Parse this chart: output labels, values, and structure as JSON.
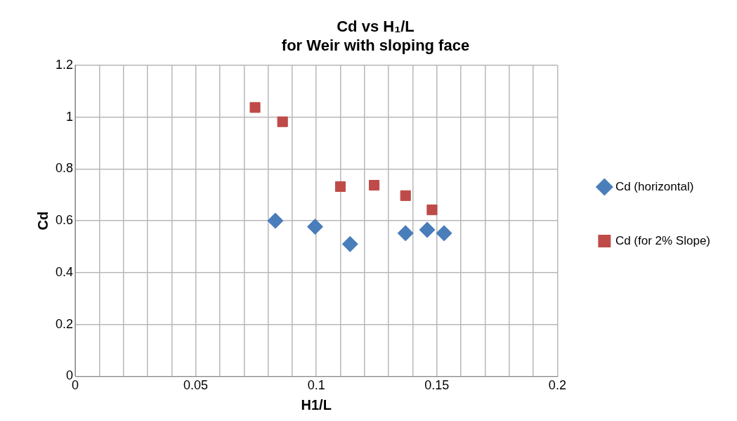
{
  "chart_data": {
    "type": "scatter",
    "title": [
      "Cd vs H₁/L",
      "for Weir with sloping face"
    ],
    "xlabel": "H1/L",
    "ylabel": "Cd",
    "xlim": [
      0,
      0.2
    ],
    "ylim": [
      0,
      1.2
    ],
    "xticks": [
      0,
      {
        "value": 0.01,
        "label": null
      },
      {
        "value": 0.02,
        "label": null
      },
      {
        "value": 0.03,
        "label": null
      },
      {
        "value": 0.04,
        "label": null
      },
      0.05,
      {
        "value": 0.06,
        "label": null
      },
      {
        "value": 0.07,
        "label": null
      },
      {
        "value": 0.08,
        "label": null
      },
      {
        "value": 0.09,
        "label": null
      },
      0.1,
      {
        "value": 0.11,
        "label": null
      },
      {
        "value": 0.12,
        "label": null
      },
      {
        "value": 0.13,
        "label": null
      },
      {
        "value": 0.14,
        "label": null
      },
      0.15,
      {
        "value": 0.16,
        "label": null
      },
      {
        "value": 0.17,
        "label": null
      },
      {
        "value": 0.18,
        "label": null
      },
      {
        "value": 0.19,
        "label": null
      },
      0.2
    ],
    "yticks": [
      0,
      0.2,
      0.4,
      0.6,
      0.8,
      1,
      1.2
    ],
    "grid": true,
    "legend": "right",
    "series": [
      {
        "name": "Cd (horizontal)",
        "color": "#4a7ebb",
        "marker": "diamond",
        "x": [
          0.083,
          0.0995,
          0.114,
          0.137,
          0.146,
          0.153
        ],
        "values": [
          0.6,
          0.577,
          0.51,
          0.552,
          0.565,
          0.552
        ]
      },
      {
        "name": "Cd (for 2% Slope)",
        "color": "#be4b48",
        "marker": "square",
        "x": [
          0.0746,
          0.086,
          0.11,
          0.124,
          0.137,
          0.148
        ],
        "values": [
          1.037,
          0.982,
          0.732,
          0.737,
          0.697,
          0.642
        ]
      }
    ]
  }
}
